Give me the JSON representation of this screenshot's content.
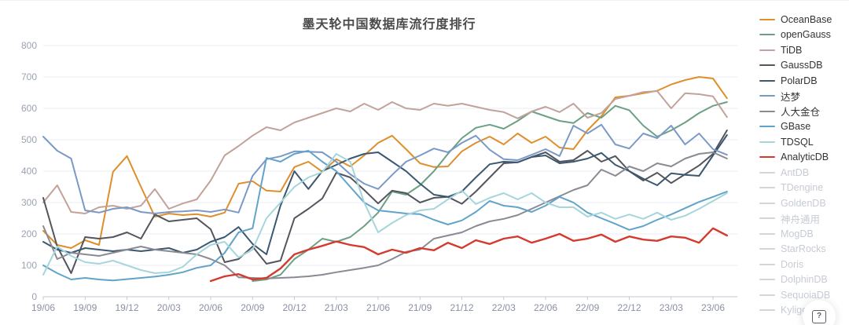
{
  "chart_data": {
    "type": "line",
    "title": "墨天轮中国数据库流行度排行",
    "legend_position": "right",
    "grid": true,
    "ylim": [
      0,
      800
    ],
    "y_ticks": [
      0,
      100,
      200,
      300,
      400,
      500,
      600,
      700,
      800
    ],
    "x_tick_labels": [
      "19/06",
      "19/09",
      "19/12",
      "20/03",
      "20/06",
      "20/09",
      "20/12",
      "21/03",
      "21/06",
      "21/09",
      "21/12",
      "22/03",
      "22/06",
      "22/09",
      "22/12",
      "23/03",
      "23/06"
    ],
    "tick_interval_months": 3,
    "x_monthly_labels": [
      "19/06",
      "19/07",
      "19/08",
      "19/09",
      "19/10",
      "19/11",
      "19/12",
      "20/01",
      "20/02",
      "20/03",
      "20/04",
      "20/05",
      "20/06",
      "20/07",
      "20/08",
      "20/09",
      "20/10",
      "20/11",
      "20/12",
      "21/01",
      "21/02",
      "21/03",
      "21/04",
      "21/05",
      "21/06",
      "21/07",
      "21/08",
      "21/09",
      "21/10",
      "21/11",
      "21/12",
      "22/01",
      "22/02",
      "22/03",
      "22/04",
      "22/05",
      "22/06",
      "22/07",
      "22/08",
      "22/09",
      "22/10",
      "22/11",
      "22/12",
      "23/01",
      "23/02",
      "23/03",
      "23/04",
      "23/05",
      "23/06",
      "23/07"
    ],
    "title_color": "#4a4a4a",
    "grid_color": "#e9eef5",
    "axis_color": "#c2c9d4",
    "y_label_color": "#9aa2b2",
    "x_label_color": "#8a90a0",
    "disabled_color": "#d2d5dc",
    "series": [
      {
        "name": "OceanBase",
        "color": "#de8f2b",
        "values": [
          210,
          165,
          155,
          180,
          165,
          398,
          448,
          350,
          255,
          265,
          260,
          263,
          255,
          268,
          360,
          368,
          338,
          335,
          413,
          430,
          398,
          438,
          415,
          450,
          490,
          513,
          470,
          425,
          413,
          415,
          463,
          490,
          510,
          485,
          520,
          490,
          510,
          475,
          470,
          530,
          575,
          635,
          640,
          648,
          656,
          676,
          690,
          700,
          695,
          632
        ]
      },
      {
        "name": "openGauss",
        "color": "#6ca084",
        "values": [
          null,
          null,
          null,
          null,
          null,
          null,
          null,
          null,
          null,
          null,
          null,
          null,
          null,
          null,
          null,
          50,
          55,
          70,
          120,
          150,
          185,
          175,
          190,
          225,
          268,
          335,
          325,
          355,
          400,
          455,
          505,
          538,
          548,
          535,
          560,
          590,
          575,
          560,
          553,
          585,
          570,
          608,
          594,
          545,
          510,
          530,
          555,
          585,
          608,
          620
        ]
      },
      {
        "name": "TiDB",
        "color": "#c2a29b",
        "values": [
          300,
          355,
          270,
          265,
          285,
          290,
          280,
          290,
          343,
          280,
          297,
          310,
          370,
          450,
          480,
          513,
          540,
          530,
          555,
          570,
          585,
          600,
          590,
          615,
          595,
          620,
          600,
          595,
          615,
          608,
          615,
          605,
          595,
          588,
          568,
          590,
          605,
          588,
          615,
          570,
          585,
          630,
          640,
          652,
          655,
          600,
          648,
          645,
          638,
          572
        ]
      },
      {
        "name": "GaussDB",
        "color": "#54555c",
        "values": [
          315,
          160,
          75,
          190,
          185,
          190,
          205,
          185,
          262,
          240,
          245,
          250,
          215,
          110,
          120,
          160,
          105,
          115,
          250,
          280,
          313,
          395,
          380,
          340,
          297,
          338,
          330,
          300,
          315,
          318,
          296,
          335,
          380,
          425,
          428,
          445,
          460,
          430,
          435,
          465,
          430,
          448,
          400,
          370,
          395,
          362,
          390,
          418,
          455,
          530
        ]
      },
      {
        "name": "PolarDB",
        "color": "#3c5870",
        "values": [
          175,
          150,
          140,
          155,
          150,
          145,
          150,
          145,
          150,
          155,
          140,
          150,
          175,
          190,
          222,
          168,
          135,
          290,
          400,
          343,
          400,
          420,
          440,
          455,
          460,
          430,
          400,
          360,
          325,
          318,
          335,
          380,
          422,
          430,
          428,
          445,
          450,
          425,
          430,
          440,
          458,
          420,
          400,
          376,
          355,
          393,
          388,
          385,
          450,
          515
        ]
      },
      {
        "name": "达梦",
        "color": "#7b99c7",
        "values": [
          510,
          465,
          440,
          275,
          268,
          280,
          285,
          270,
          265,
          270,
          272,
          275,
          270,
          278,
          268,
          385,
          438,
          447,
          463,
          462,
          460,
          430,
          390,
          360,
          343,
          388,
          430,
          450,
          472,
          460,
          490,
          513,
          468,
          438,
          435,
          452,
          470,
          448,
          545,
          520,
          548,
          485,
          472,
          520,
          505,
          545,
          485,
          520,
          470,
          452
        ]
      },
      {
        "name": "人大金仓",
        "color": "#8a8a92",
        "values": [
          225,
          120,
          140,
          135,
          130,
          140,
          150,
          160,
          150,
          145,
          140,
          135,
          120,
          100,
          62,
          60,
          58,
          60,
          62,
          65,
          70,
          78,
          85,
          92,
          100,
          120,
          143,
          150,
          185,
          195,
          205,
          225,
          240,
          248,
          260,
          280,
          300,
          320,
          340,
          355,
          405,
          385,
          415,
          400,
          425,
          415,
          440,
          455,
          460,
          440
        ]
      },
      {
        "name": "GBase",
        "color": "#61a3c9",
        "values": [
          100,
          75,
          55,
          60,
          55,
          52,
          56,
          60,
          64,
          70,
          78,
          92,
          100,
          140,
          205,
          218,
          442,
          430,
          455,
          465,
          430,
          400,
          350,
          300,
          275,
          270,
          265,
          263,
          245,
          230,
          243,
          270,
          305,
          290,
          285,
          270,
          290,
          318,
          300,
          268,
          250,
          232,
          213,
          225,
          245,
          262,
          282,
          302,
          318,
          335
        ]
      },
      {
        "name": "TDSQL",
        "color": "#a6d5dc",
        "values": [
          70,
          160,
          130,
          110,
          105,
          115,
          100,
          85,
          75,
          78,
          95,
          135,
          165,
          175,
          125,
          150,
          250,
          300,
          350,
          380,
          397,
          455,
          430,
          300,
          205,
          235,
          260,
          275,
          280,
          310,
          338,
          295,
          315,
          330,
          310,
          330,
          300,
          285,
          285,
          255,
          268,
          248,
          262,
          248,
          268,
          245,
          258,
          280,
          305,
          330
        ]
      },
      {
        "name": "AnalyticDB",
        "color": "#d53a2f",
        "values": [
          null,
          null,
          null,
          null,
          null,
          null,
          null,
          null,
          null,
          null,
          null,
          null,
          50,
          65,
          72,
          55,
          60,
          90,
          135,
          150,
          162,
          176,
          165,
          158,
          135,
          150,
          140,
          155,
          148,
          172,
          155,
          180,
          168,
          185,
          192,
          172,
          185,
          200,
          178,
          185,
          198,
          175,
          192,
          182,
          178,
          192,
          188,
          172,
          218,
          195
        ]
      }
    ],
    "legend_disabled_items": [
      "AntDB",
      "TDengine",
      "GoldenDB",
      "神舟通用",
      "MogDB",
      "StarRocks",
      "Doris",
      "DolphinDB",
      "SequoiaDB",
      "Kyligence"
    ]
  },
  "help_button": {
    "label": "?"
  }
}
